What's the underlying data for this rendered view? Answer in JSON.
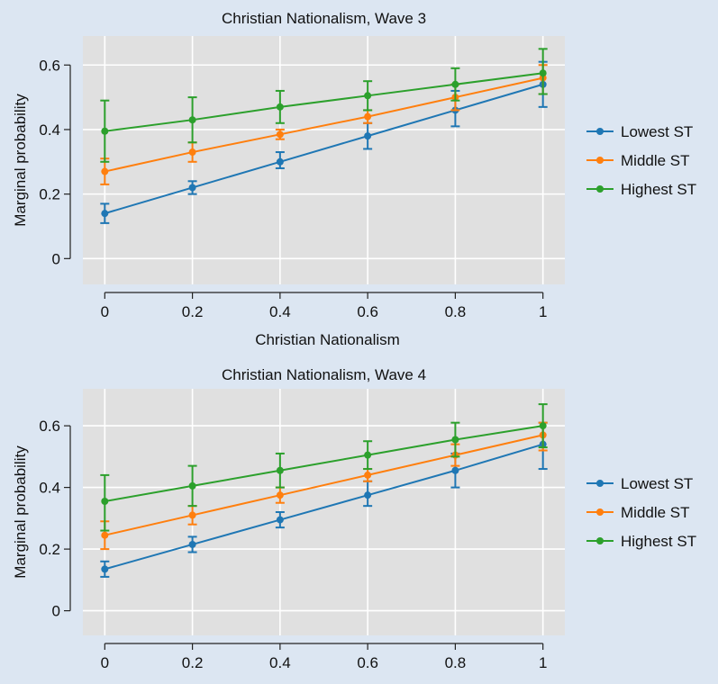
{
  "series_colors": {
    "Lowest ST": "#1f77b4",
    "Middle ST": "#ff7f0e",
    "Highest ST": "#2ca02c"
  },
  "plot_background": "#e0e0e0",
  "figure_background": "#dce6f2",
  "chart_data": [
    {
      "type": "line",
      "title": "Christian Nationalism, Wave 3",
      "xlabel": "Christian Nationalism",
      "ylabel": "Marginal probability",
      "x": [
        0,
        0.2,
        0.4,
        0.6,
        0.8,
        1
      ],
      "x_tick_labels": [
        "0",
        "0.2",
        "0.4",
        "0.6",
        "0.8",
        "1"
      ],
      "y_ticks": [
        0,
        0.2,
        0.4,
        0.6
      ],
      "y_tick_labels": [
        "0",
        "0.2",
        "0.4",
        "0.6"
      ],
      "xlim": [
        -0.05,
        1.05
      ],
      "ylim": [
        -0.08,
        0.69
      ],
      "grid": true,
      "legend_position": "right",
      "series": [
        {
          "name": "Lowest ST",
          "values": [
            0.14,
            0.22,
            0.3,
            0.38,
            0.46,
            0.54
          ],
          "lower": [
            0.11,
            0.2,
            0.28,
            0.34,
            0.41,
            0.47
          ],
          "upper": [
            0.17,
            0.24,
            0.33,
            0.42,
            0.52,
            0.61
          ]
        },
        {
          "name": "Middle ST",
          "values": [
            0.27,
            0.33,
            0.385,
            0.44,
            0.5,
            0.56
          ],
          "lower": [
            0.23,
            0.3,
            0.37,
            0.42,
            0.46,
            0.51
          ],
          "upper": [
            0.31,
            0.36,
            0.4,
            0.46,
            0.54,
            0.6
          ]
        },
        {
          "name": "Highest ST",
          "values": [
            0.395,
            0.43,
            0.47,
            0.505,
            0.54,
            0.575
          ],
          "lower": [
            0.3,
            0.36,
            0.42,
            0.46,
            0.49,
            0.51
          ],
          "upper": [
            0.49,
            0.5,
            0.52,
            0.55,
            0.59,
            0.65
          ]
        }
      ]
    },
    {
      "type": "line",
      "title": "Christian Nationalism, Wave 4",
      "xlabel": "Christian Nationalism",
      "ylabel": "Marginal probability",
      "x": [
        0,
        0.2,
        0.4,
        0.6,
        0.8,
        1
      ],
      "x_tick_labels": [
        "0",
        "0.2",
        "0.4",
        "0.6",
        "0.8",
        "1"
      ],
      "y_ticks": [
        0,
        0.2,
        0.4,
        0.6
      ],
      "y_tick_labels": [
        "0",
        "0.2",
        "0.4",
        "0.6"
      ],
      "xlim": [
        -0.05,
        1.05
      ],
      "ylim": [
        -0.08,
        0.72
      ],
      "grid": true,
      "legend_position": "right",
      "series": [
        {
          "name": "Lowest ST",
          "values": [
            0.135,
            0.215,
            0.295,
            0.375,
            0.455,
            0.54
          ],
          "lower": [
            0.11,
            0.19,
            0.27,
            0.34,
            0.4,
            0.46
          ],
          "upper": [
            0.16,
            0.24,
            0.32,
            0.42,
            0.51,
            0.61
          ]
        },
        {
          "name": "Middle ST",
          "values": [
            0.245,
            0.31,
            0.375,
            0.44,
            0.505,
            0.57
          ],
          "lower": [
            0.2,
            0.28,
            0.35,
            0.42,
            0.47,
            0.52
          ],
          "upper": [
            0.29,
            0.34,
            0.4,
            0.46,
            0.54,
            0.61
          ]
        },
        {
          "name": "Highest ST",
          "values": [
            0.355,
            0.405,
            0.455,
            0.505,
            0.555,
            0.6
          ],
          "lower": [
            0.26,
            0.34,
            0.4,
            0.46,
            0.5,
            0.53
          ],
          "upper": [
            0.44,
            0.47,
            0.51,
            0.55,
            0.61,
            0.67
          ]
        }
      ]
    }
  ]
}
